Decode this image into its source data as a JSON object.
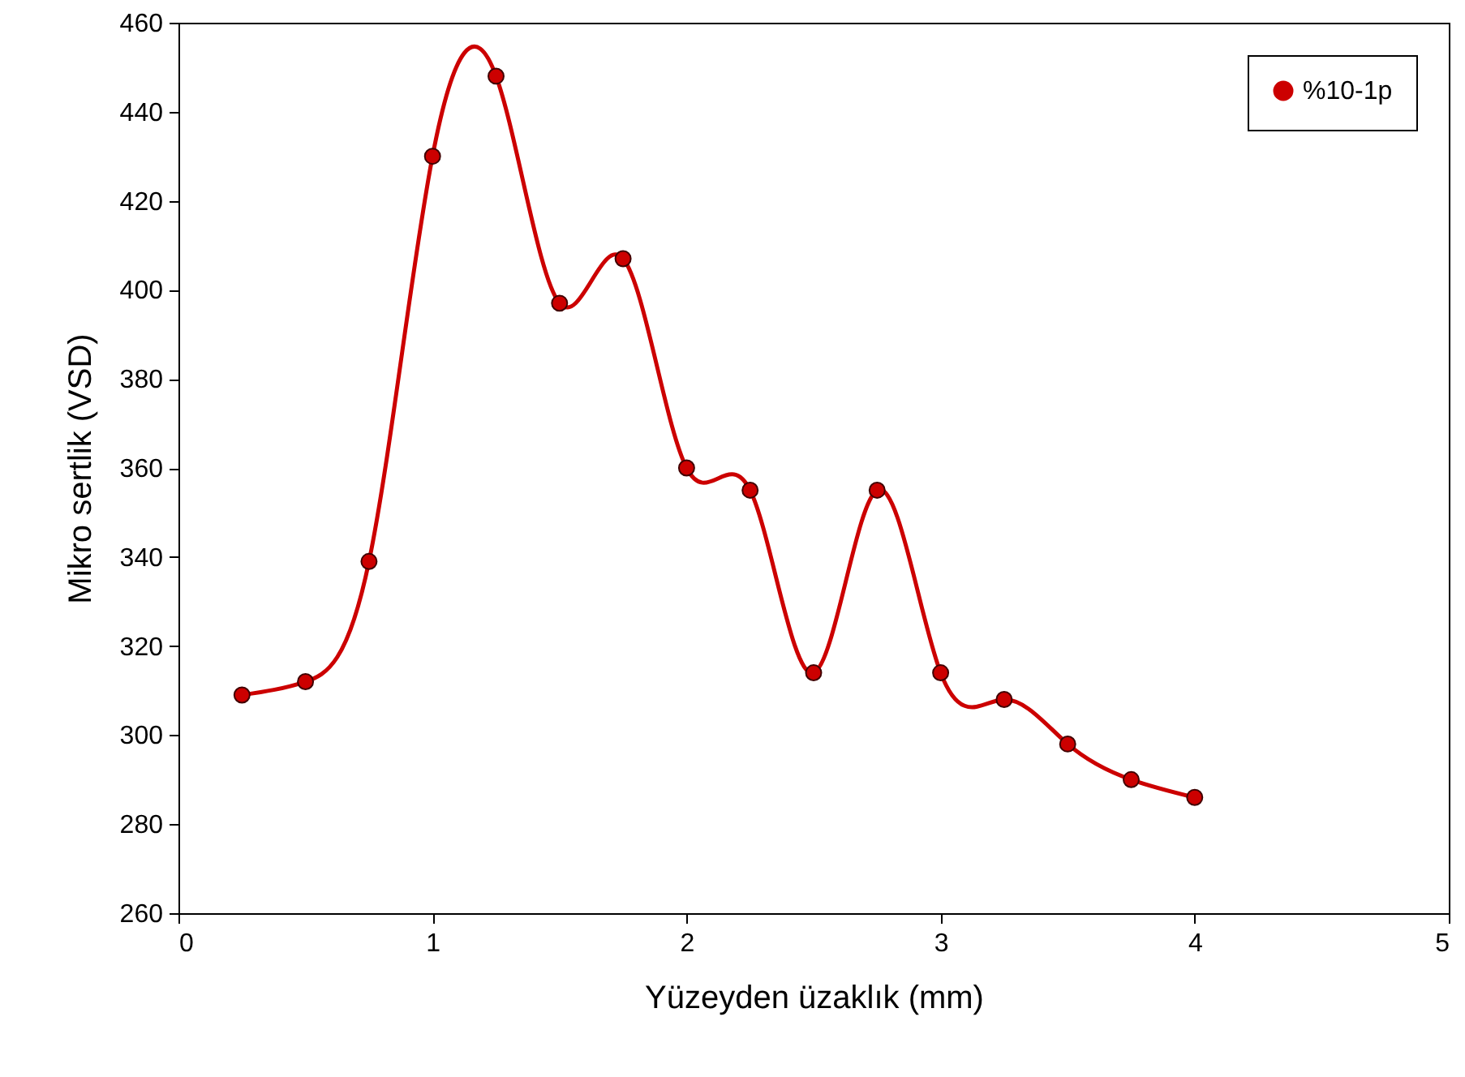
{
  "chart_data": {
    "type": "line",
    "xlabel": "Yüzeyden üzaklık (mm)",
    "ylabel": "Mikro sertlik (VSD)",
    "x": [
      0.25,
      0.5,
      0.75,
      1,
      1.25,
      1.5,
      1.75,
      2,
      2.25,
      2.5,
      2.75,
      3,
      3.25,
      3.5,
      3.75,
      4
    ],
    "series": [
      {
        "name": "%10-1p",
        "color": "#cc0000",
        "values": [
          309,
          312,
          339,
          430,
          448,
          397,
          407,
          360,
          355,
          314,
          355,
          314,
          308,
          298,
          290,
          286
        ]
      }
    ],
    "xlim": [
      0,
      5
    ],
    "xticks": [
      0,
      1,
      2,
      3,
      4,
      5
    ],
    "ylim": [
      260,
      460
    ],
    "yticks": [
      260,
      280,
      300,
      320,
      340,
      360,
      380,
      400,
      420,
      440,
      460
    ],
    "grid": false,
    "legend": "top right",
    "marker": "circle",
    "line_style": "solid"
  }
}
